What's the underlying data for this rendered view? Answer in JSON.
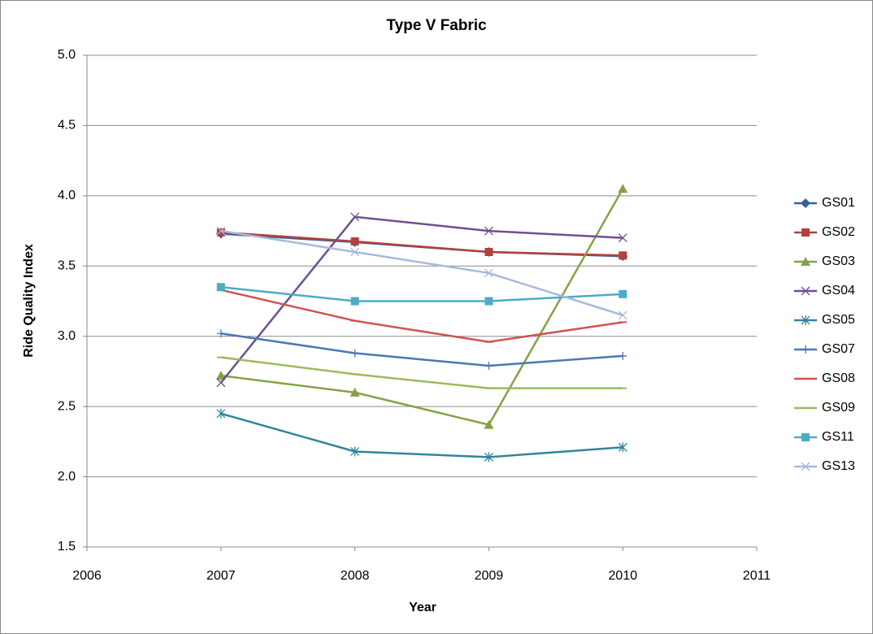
{
  "chart_data": {
    "type": "line",
    "title": "Type V Fabric",
    "x_label": "Year",
    "y_label": "Ride Quality Index",
    "x": [
      2007,
      2008,
      2009,
      2010
    ],
    "xlim": [
      2006,
      2011
    ],
    "xticks": [
      2006,
      2007,
      2008,
      2009,
      2010,
      2011
    ],
    "ylim": [
      1.5,
      5.0
    ],
    "yticks": [
      1.5,
      {
        "value": 2,
        "label": "2.0"
      },
      2.5,
      {
        "value": 3,
        "label": "3.0"
      },
      3.5,
      {
        "value": 4,
        "label": "4.0"
      },
      4.5,
      {
        "value": 5,
        "label": "5.0"
      }
    ],
    "grid": true,
    "legend": "right",
    "series": [
      {
        "name": "GS01",
        "color": "#3a5f9b",
        "marker": "diamond",
        "values": [
          3.73,
          3.67,
          3.6,
          3.57
        ]
      },
      {
        "name": "GS02",
        "color": "#b3403d",
        "marker": "square",
        "values": [
          3.74,
          3.675,
          3.6,
          3.575
        ]
      },
      {
        "name": "GS03",
        "color": "#84a344",
        "marker": "triangle",
        "values": [
          2.72,
          2.6,
          2.37,
          4.05
        ]
      },
      {
        "name": "GS04",
        "color": "#6f4f92",
        "marker": "x",
        "values": [
          2.67,
          3.85,
          3.75,
          3.7
        ]
      },
      {
        "name": "GS05",
        "color": "#31859c",
        "marker": "star",
        "values": [
          2.45,
          2.18,
          2.14,
          2.21
        ]
      },
      {
        "name": "GS07",
        "color": "#4a78b5",
        "marker": "plus",
        "values": [
          3.02,
          2.88,
          2.79,
          2.86
        ]
      },
      {
        "name": "GS08",
        "color": "#d0534f",
        "marker": "dash",
        "values": [
          3.33,
          3.11,
          2.96,
          3.1
        ]
      },
      {
        "name": "GS09",
        "color": "#9bbb59",
        "marker": "dash",
        "values": [
          2.85,
          2.73,
          2.63,
          2.63
        ]
      },
      {
        "name": "GS11",
        "color": "#4bacc6",
        "marker": "square",
        "values": [
          3.35,
          3.25,
          3.25,
          3.3
        ]
      },
      {
        "name": "GS13",
        "color": "#a6b9dc",
        "marker": "x",
        "values": [
          3.75,
          3.6,
          3.45,
          3.15
        ]
      }
    ]
  }
}
